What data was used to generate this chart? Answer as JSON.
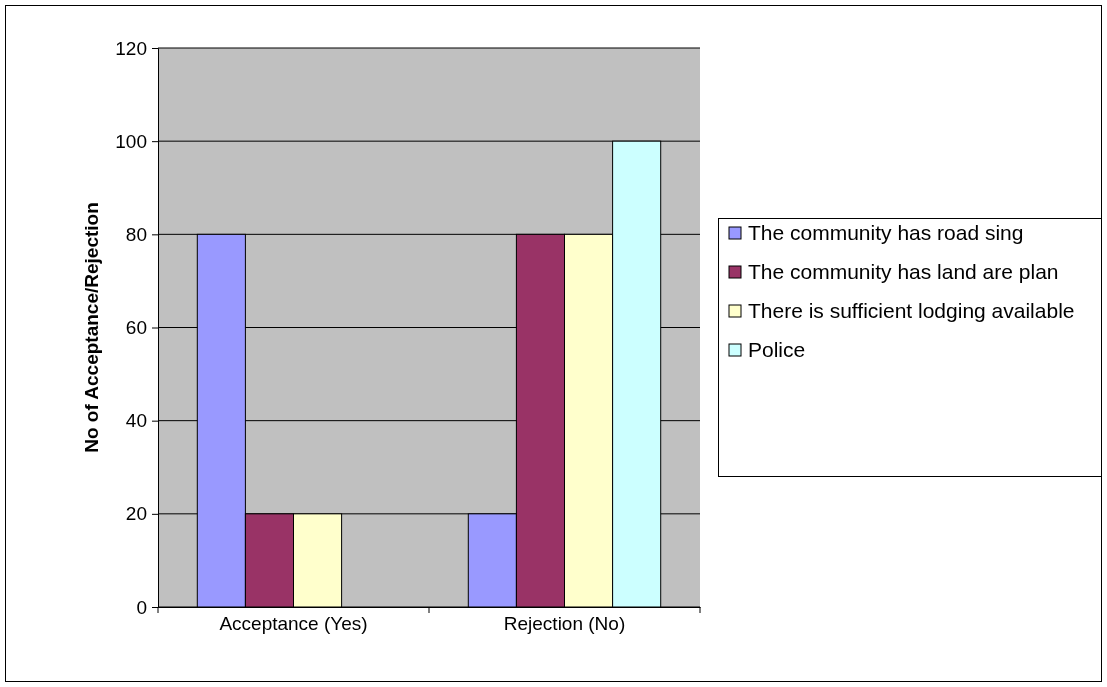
{
  "chart_data": {
    "type": "bar",
    "ylabel": "No of Acceptance/Rejection",
    "categories": [
      "Acceptance (Yes)",
      "Rejection (No)"
    ],
    "series": [
      {
        "name": "The community has road sing",
        "color": "#9999ff",
        "values": [
          80,
          20
        ]
      },
      {
        "name": "The community has land are plan",
        "color": "#993366",
        "values": [
          20,
          80
        ]
      },
      {
        "name": "There is sufficient lodging available",
        "color": "#ffffcc",
        "values": [
          20,
          80
        ]
      },
      {
        "name": "Police",
        "color": "#ccffff",
        "values": [
          0,
          100
        ]
      }
    ],
    "ylim": [
      0,
      120
    ],
    "yticks": [
      0,
      20,
      40,
      60,
      80,
      100,
      120
    ],
    "grid": "y",
    "legend": "right"
  }
}
